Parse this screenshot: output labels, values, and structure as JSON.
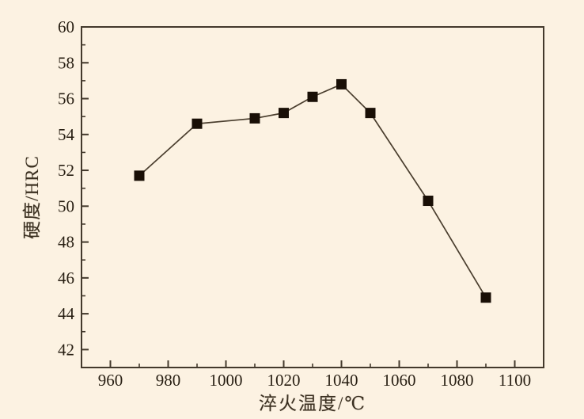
{
  "colors": {
    "background": "#fcf2e2",
    "axis": "#43392c",
    "text": "#281f13",
    "line": "#4a3e2e",
    "marker": "#190f06"
  },
  "chart_data": {
    "type": "line",
    "title": "",
    "xlabel": "淬火温度/℃",
    "ylabel": "硬度/HRC",
    "xlim": [
      950,
      1110
    ],
    "ylim": [
      41,
      60
    ],
    "x_major_ticks": [
      960,
      980,
      1000,
      1020,
      1040,
      1060,
      1080,
      1100
    ],
    "x_minor_step": 10,
    "y_major_ticks": [
      42,
      44,
      46,
      48,
      50,
      52,
      54,
      56,
      58,
      60
    ],
    "y_minor_step": 1,
    "grid": false,
    "legend_position": "none",
    "series": [
      {
        "name": "硬度",
        "marker": "square",
        "x": [
          970,
          990,
          1010,
          1020,
          1030,
          1040,
          1050,
          1070,
          1090
        ],
        "y": [
          51.7,
          54.6,
          54.9,
          55.2,
          56.1,
          56.8,
          55.2,
          50.3,
          44.9
        ]
      }
    ]
  }
}
